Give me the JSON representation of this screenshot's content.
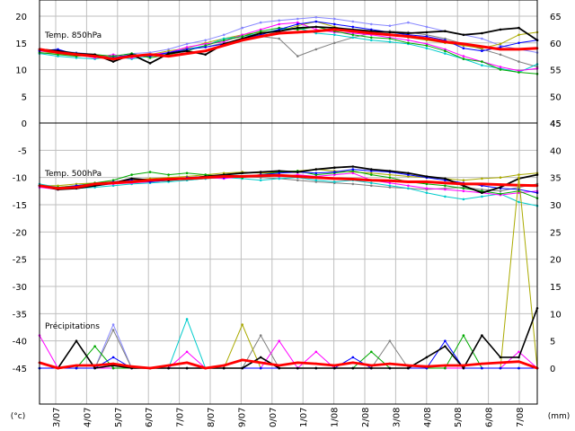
{
  "chart_data": [
    {
      "type": "line",
      "panel": "top",
      "label": "Temp. 850hPa",
      "left_ticks": [
        "20",
        "15",
        "10",
        "5",
        "0"
      ],
      "right_ticks": [
        "65",
        "60",
        "55",
        "50",
        "45"
      ],
      "ylim": [
        0,
        20
      ],
      "grid": true,
      "series": [
        {
          "color": "#ff0000",
          "values": [
            13.8,
            13.2,
            12.8,
            12.5,
            12.0,
            12.5,
            12.8,
            12.5,
            13.0,
            13.5,
            14.5,
            15.5,
            16.2,
            16.8,
            17.0,
            17.2,
            17.5,
            17.2,
            16.8,
            16.5,
            16.2,
            15.8,
            15.2,
            14.8,
            14.3,
            13.8,
            13.8,
            14.0
          ]
        },
        {
          "color": "#000000",
          "values": [
            13.8,
            13.5,
            13.0,
            12.8,
            11.5,
            12.8,
            11.2,
            13.0,
            13.5,
            12.8,
            14.8,
            15.8,
            16.8,
            17.2,
            17.8,
            18.0,
            17.8,
            17.5,
            17.2,
            17.0,
            16.8,
            17.0,
            17.2,
            16.5,
            16.8,
            17.5,
            17.8,
            15.5
          ]
        },
        {
          "color": "#0000ff",
          "values": [
            13.5,
            13.8,
            12.8,
            12.5,
            12.2,
            12.8,
            12.5,
            13.2,
            13.8,
            14.2,
            14.8,
            15.8,
            16.5,
            17.5,
            18.5,
            19.0,
            18.5,
            18.0,
            17.5,
            17.0,
            16.5,
            16.2,
            15.5,
            14.0,
            13.5,
            14.2,
            15.0,
            15.5
          ]
        },
        {
          "color": "#00aa00",
          "values": [
            13.2,
            12.8,
            12.5,
            12.8,
            12.5,
            13.0,
            12.2,
            12.8,
            13.5,
            14.5,
            15.5,
            16.2,
            17.2,
            17.8,
            17.5,
            18.0,
            17.2,
            16.5,
            16.0,
            15.8,
            15.0,
            14.5,
            13.5,
            12.0,
            11.5,
            10.0,
            9.5,
            9.2
          ]
        },
        {
          "color": "#ff00ff",
          "values": [
            13.5,
            13.2,
            12.8,
            12.2,
            12.8,
            12.2,
            12.8,
            13.2,
            14.2,
            14.8,
            15.2,
            16.5,
            17.5,
            18.5,
            18.8,
            17.5,
            17.0,
            16.8,
            16.5,
            16.0,
            15.5,
            14.8,
            13.8,
            12.5,
            11.5,
            10.5,
            9.8,
            10.2
          ]
        },
        {
          "color": "#00cccc",
          "values": [
            13.0,
            12.5,
            12.2,
            12.0,
            12.5,
            12.0,
            12.5,
            13.0,
            13.8,
            14.5,
            15.8,
            16.2,
            16.8,
            17.5,
            17.8,
            16.8,
            16.5,
            16.0,
            15.5,
            15.2,
            14.8,
            14.0,
            13.0,
            12.0,
            10.8,
            10.2,
            9.5,
            11.0
          ]
        },
        {
          "color": "#aaaa00",
          "values": [
            13.5,
            13.0,
            12.5,
            12.8,
            12.2,
            12.5,
            12.8,
            13.5,
            14.0,
            15.0,
            15.8,
            16.5,
            17.0,
            17.2,
            18.2,
            19.0,
            18.0,
            17.2,
            16.8,
            16.5,
            16.0,
            15.5,
            15.0,
            14.5,
            14.0,
            14.8,
            16.5,
            17.0
          ]
        },
        {
          "color": "#808080",
          "values": [
            13.0,
            13.2,
            12.8,
            12.5,
            12.0,
            12.8,
            12.5,
            13.0,
            13.8,
            14.2,
            15.0,
            15.5,
            16.2,
            15.8,
            12.5,
            13.8,
            15.0,
            16.0,
            16.8,
            17.2,
            17.0,
            16.5,
            15.8,
            14.8,
            13.8,
            12.8,
            11.5,
            10.5
          ]
        },
        {
          "color": "#8888ff",
          "values": [
            13.8,
            13.5,
            13.2,
            12.8,
            12.5,
            13.0,
            13.2,
            13.8,
            14.8,
            15.5,
            16.5,
            17.8,
            18.8,
            19.2,
            19.5,
            19.8,
            19.5,
            19.0,
            18.5,
            18.2,
            18.8,
            18.0,
            17.2,
            16.5,
            15.8,
            14.5,
            13.8,
            13.2
          ]
        }
      ]
    },
    {
      "type": "line",
      "panel": "bottom",
      "left_ticks": [
        "-5",
        "-10",
        "-15",
        "-20",
        "-25",
        "-30",
        "-35",
        "-40",
        "-45"
      ],
      "right_ticks": [
        "45",
        "40",
        "35",
        "30",
        "25",
        "20",
        "15",
        "10",
        "5",
        "0"
      ],
      "grid": true,
      "temperature": {
        "label": "Temp. 500hPa",
        "ylim": [
          -45,
          0
        ],
        "series": [
          {
            "color": "#ff0000",
            "values": [
              -11.5,
              -12.0,
              -11.8,
              -11.2,
              -11.0,
              -10.8,
              -10.5,
              -10.3,
              -10.2,
              -10.0,
              -9.8,
              -9.8,
              -9.7,
              -9.6,
              -9.8,
              -10.0,
              -10.2,
              -10.3,
              -10.5,
              -10.6,
              -10.8,
              -10.8,
              -11.0,
              -11.2,
              -11.2,
              -11.3,
              -11.4,
              -11.5
            ]
          },
          {
            "color": "#000000",
            "values": [
              -11.5,
              -12.2,
              -12.0,
              -11.5,
              -11.0,
              -10.2,
              -10.5,
              -10.5,
              -10.2,
              -9.8,
              -9.5,
              -9.2,
              -9.0,
              -8.8,
              -9.0,
              -8.5,
              -8.2,
              -8.0,
              -8.5,
              -8.8,
              -9.2,
              -9.8,
              -10.2,
              -11.5,
              -12.8,
              -11.8,
              -10.2,
              -9.5
            ]
          },
          {
            "color": "#0000ff",
            "values": [
              -11.5,
              -12.0,
              -11.5,
              -11.2,
              -10.8,
              -10.5,
              -10.8,
              -10.5,
              -10.0,
              -9.8,
              -10.0,
              -9.8,
              -9.5,
              -9.2,
              -9.0,
              -9.2,
              -9.0,
              -8.5,
              -8.8,
              -9.0,
              -9.5,
              -10.0,
              -10.5,
              -11.0,
              -11.5,
              -12.0,
              -12.2,
              -12.8
            ]
          },
          {
            "color": "#00aa00",
            "values": [
              -11.5,
              -11.8,
              -11.5,
              -11.0,
              -10.5,
              -9.5,
              -9.0,
              -9.5,
              -9.2,
              -9.5,
              -9.8,
              -10.0,
              -9.5,
              -9.0,
              -8.8,
              -9.5,
              -9.2,
              -8.8,
              -9.5,
              -10.0,
              -10.8,
              -11.2,
              -11.5,
              -12.0,
              -12.5,
              -13.0,
              -12.5,
              -13.8
            ]
          },
          {
            "color": "#ff00ff",
            "values": [
              -11.8,
              -12.2,
              -11.8,
              -11.5,
              -11.2,
              -11.0,
              -10.8,
              -10.5,
              -10.2,
              -10.0,
              -10.2,
              -9.8,
              -9.5,
              -9.8,
              -9.5,
              -9.8,
              -9.5,
              -9.2,
              -10.5,
              -11.0,
              -11.5,
              -12.0,
              -12.2,
              -12.5,
              -12.8,
              -13.2,
              -12.8,
              -12.5
            ]
          },
          {
            "color": "#00cccc",
            "values": [
              -11.2,
              -11.8,
              -12.0,
              -11.8,
              -11.5,
              -11.2,
              -11.0,
              -10.8,
              -10.5,
              -10.2,
              -10.0,
              -10.2,
              -10.5,
              -10.2,
              -10.0,
              -10.5,
              -10.8,
              -10.5,
              -11.0,
              -11.5,
              -12.0,
              -12.8,
              -13.5,
              -14.0,
              -13.5,
              -13.0,
              -14.5,
              -15.2
            ]
          },
          {
            "color": "#aaaa00",
            "values": [
              -11.5,
              -11.5,
              -11.2,
              -11.0,
              -10.8,
              -10.5,
              -10.2,
              -10.0,
              -9.8,
              -9.5,
              -9.2,
              -9.0,
              -9.2,
              -9.0,
              -8.8,
              -8.5,
              -8.8,
              -9.0,
              -9.2,
              -9.5,
              -9.8,
              -10.0,
              -10.2,
              -10.5,
              -10.2,
              -10.0,
              -9.5,
              -9.2
            ]
          },
          {
            "color": "#808080",
            "values": [
              -11.5,
              -11.8,
              -11.5,
              -11.2,
              -11.0,
              -10.8,
              -10.5,
              -10.2,
              -10.5,
              -10.2,
              -10.0,
              -9.8,
              -10.0,
              -10.2,
              -10.5,
              -10.8,
              -11.0,
              -11.2,
              -11.5,
              -11.8,
              -12.0,
              -12.2,
              -12.0,
              -11.8,
              -12.2,
              -12.5,
              -11.8,
              -11.2
            ]
          }
        ]
      },
      "precipitation": {
        "label": "Précipitations",
        "unit_scale_max": 45,
        "series": [
          {
            "color": "#ff0000",
            "values": [
              1,
              0,
              0.5,
              0.5,
              0.8,
              0.3,
              0,
              0.5,
              1,
              0,
              0.5,
              1.5,
              1,
              0.5,
              1,
              0.8,
              0.5,
              1,
              0.5,
              0.8,
              0.5,
              0.3,
              0.5,
              0.5,
              0.8,
              1,
              1.2,
              0
            ]
          },
          {
            "color": "#000000",
            "values": [
              1,
              0,
              5,
              0,
              0.5,
              0,
              0,
              0,
              0,
              0,
              0,
              0,
              2,
              0,
              0,
              0,
              0,
              0,
              0,
              0,
              0,
              2,
              4,
              0,
              6,
              2,
              2,
              11
            ]
          },
          {
            "color": "#0000ff",
            "values": [
              0,
              0,
              0,
              0,
              2,
              0,
              0,
              0,
              0,
              0,
              0,
              0,
              0,
              0,
              0,
              0,
              0,
              2,
              0,
              0,
              0,
              0,
              5,
              0,
              0,
              0,
              0,
              0
            ]
          },
          {
            "color": "#00aa00",
            "values": [
              0,
              0,
              0,
              4,
              0,
              0,
              0,
              0,
              0,
              0,
              0,
              0,
              0,
              0,
              0,
              0,
              0,
              0,
              3,
              0,
              0,
              0,
              0,
              6,
              0,
              0,
              0,
              0
            ]
          },
          {
            "color": "#ff00ff",
            "values": [
              6,
              0,
              0,
              0,
              0,
              0,
              0,
              0,
              3,
              0,
              0,
              0,
              0,
              5,
              0,
              3,
              0,
              0,
              0,
              0,
              0,
              0,
              0,
              0,
              0,
              0,
              3,
              0
            ]
          },
          {
            "color": "#00cccc",
            "values": [
              0,
              0,
              0,
              0,
              0,
              0,
              0,
              0,
              9,
              0,
              0,
              0,
              0,
              0,
              0,
              0,
              0,
              0,
              0,
              0,
              0,
              0,
              0,
              0,
              0,
              0,
              0,
              0
            ]
          },
          {
            "color": "#aaaa00",
            "values": [
              0,
              0,
              0,
              0,
              0,
              0,
              0,
              0,
              0,
              0,
              0,
              8,
              0,
              0,
              0,
              0,
              0,
              0,
              0,
              0,
              0,
              0,
              0,
              0,
              0,
              0,
              35,
              0
            ]
          },
          {
            "color": "#808080",
            "values": [
              0,
              0,
              0,
              0,
              7,
              0,
              0,
              0,
              0,
              0,
              0,
              0,
              6,
              0,
              0,
              0,
              0,
              0,
              0,
              5,
              0,
              0,
              0,
              0,
              0,
              0,
              0,
              0
            ]
          },
          {
            "color": "#8888ff",
            "values": [
              0,
              0,
              0,
              0,
              8,
              0,
              0,
              0,
              0,
              0,
              0,
              0,
              0,
              0,
              0,
              0,
              0,
              0,
              0,
              0,
              0,
              0,
              0,
              0,
              0,
              0,
              0,
              0
            ]
          }
        ]
      }
    }
  ],
  "axes": {
    "left_unit": "(°c)",
    "right_unit": "(mm)",
    "x_labels": [
      "3/07",
      "4/07",
      "5/07",
      "6/07",
      "7/07",
      "8/07",
      "9/07",
      "0/07",
      "1/07",
      "1/08",
      "2/08",
      "3/08",
      "4/08",
      "5/08",
      "6/08",
      "7/08"
    ]
  }
}
